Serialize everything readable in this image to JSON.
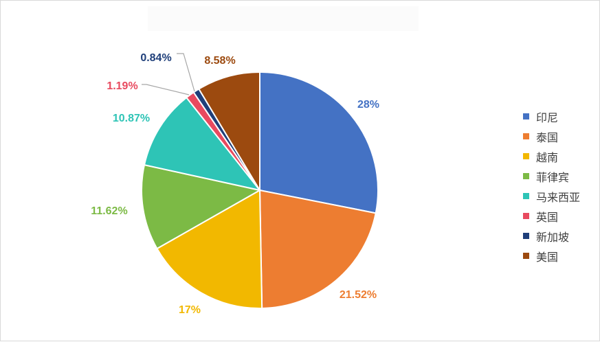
{
  "chart_data": {
    "type": "pie",
    "categories": [
      "印尼",
      "泰国",
      "越南",
      "菲律宾",
      "马来西亚",
      "英国",
      "新加坡",
      "美国"
    ],
    "values": [
      28,
      21.52,
      17,
      11.62,
      10.87,
      1.19,
      0.84,
      8.58
    ],
    "data_labels": [
      "28%",
      "21.52%",
      "17%",
      "11.62%",
      "10.87%",
      "1.19%",
      "0.84%",
      "8.58%"
    ],
    "colors": [
      "#4472C4",
      "#ED7D31",
      "#F2B800",
      "#7CBA45",
      "#2EC4B6",
      "#E84A5F",
      "#1F3F7A",
      "#9C4A0F"
    ],
    "legend_position": "right",
    "start_angle_deg": 0,
    "direction": "clockwise"
  }
}
